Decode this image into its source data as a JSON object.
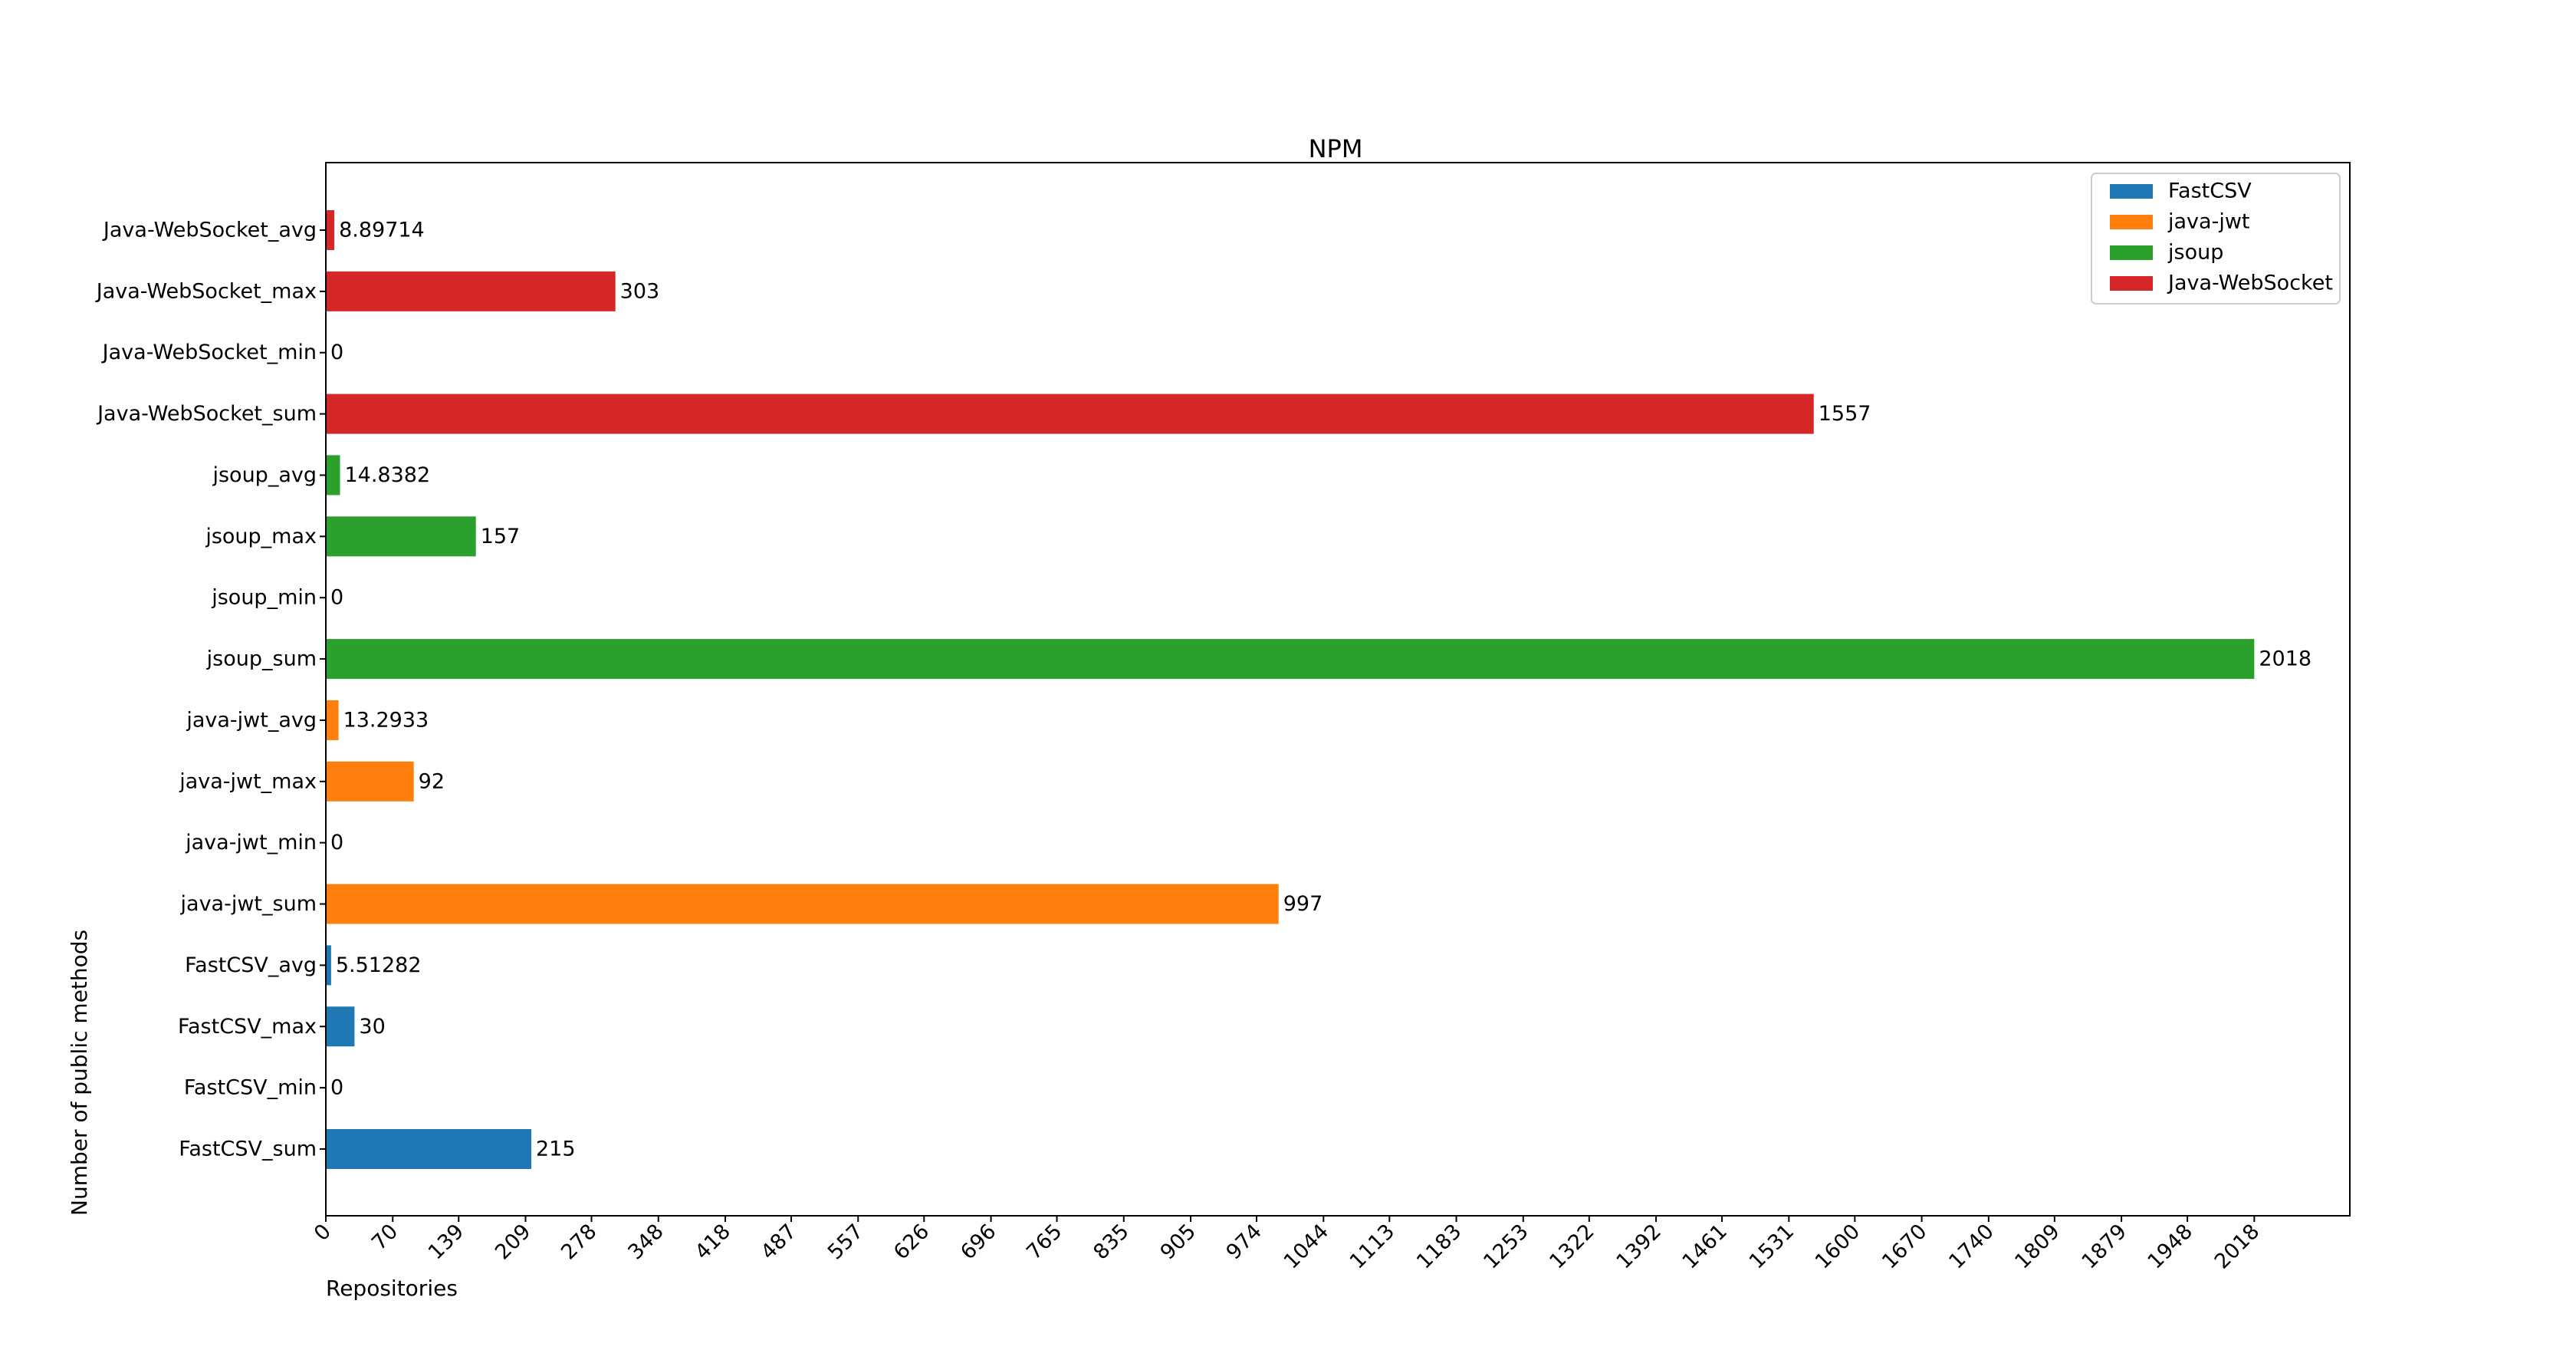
{
  "chart_data": {
    "type": "bar",
    "orientation": "horizontal",
    "title": "NPM",
    "xlabel": "Repositories",
    "ylabel": "Number of public methods",
    "xlim": [
      0,
      2118
    ],
    "grid": false,
    "legend_position": "top-right",
    "xticks": [
      "0",
      "70",
      "139",
      "209",
      "278",
      "348",
      "418",
      "487",
      "557",
      "626",
      "696",
      "765",
      "835",
      "905",
      "974",
      "1044",
      "1113",
      "1183",
      "1253",
      "1322",
      "1392",
      "1461",
      "1531",
      "1600",
      "1670",
      "1740",
      "1809",
      "1879",
      "1948",
      "2018"
    ],
    "xtick_values": [
      0,
      70,
      139,
      209,
      278,
      348,
      418,
      487,
      557,
      626,
      696,
      765,
      835,
      905,
      974,
      1044,
      1113,
      1183,
      1253,
      1322,
      1392,
      1461,
      1531,
      1600,
      1670,
      1740,
      1809,
      1879,
      1948,
      2018
    ],
    "legend": [
      {
        "name": "FastCSV",
        "color": "#1f77b4"
      },
      {
        "name": "java-jwt",
        "color": "#ff7f0e"
      },
      {
        "name": "jsoup",
        "color": "#2ca02c"
      },
      {
        "name": "Java-WebSocket",
        "color": "#d62728"
      }
    ],
    "bars": [
      {
        "category": "FastCSV_sum",
        "value": 215,
        "label": "215",
        "series": "FastCSV",
        "color": "#1f77b4"
      },
      {
        "category": "FastCSV_min",
        "value": 0,
        "label": "0",
        "series": "FastCSV",
        "color": "#1f77b4"
      },
      {
        "category": "FastCSV_max",
        "value": 30,
        "label": "30",
        "series": "FastCSV",
        "color": "#1f77b4"
      },
      {
        "category": "FastCSV_avg",
        "value": 5.51282,
        "label": "5.51282",
        "series": "FastCSV",
        "color": "#1f77b4"
      },
      {
        "category": "java-jwt_sum",
        "value": 997,
        "label": "997",
        "series": "java-jwt",
        "color": "#ff7f0e"
      },
      {
        "category": "java-jwt_min",
        "value": 0,
        "label": "0",
        "series": "java-jwt",
        "color": "#ff7f0e"
      },
      {
        "category": "java-jwt_max",
        "value": 92,
        "label": "92",
        "series": "java-jwt",
        "color": "#ff7f0e"
      },
      {
        "category": "java-jwt_avg",
        "value": 13.2933,
        "label": "13.2933",
        "series": "java-jwt",
        "color": "#ff7f0e"
      },
      {
        "category": "jsoup_sum",
        "value": 2018,
        "label": "2018",
        "series": "jsoup",
        "color": "#2ca02c"
      },
      {
        "category": "jsoup_min",
        "value": 0,
        "label": "0",
        "series": "jsoup",
        "color": "#2ca02c"
      },
      {
        "category": "jsoup_max",
        "value": 157,
        "label": "157",
        "series": "jsoup",
        "color": "#2ca02c"
      },
      {
        "category": "jsoup_avg",
        "value": 14.8382,
        "label": "14.8382",
        "series": "jsoup",
        "color": "#2ca02c"
      },
      {
        "category": "Java-WebSocket_sum",
        "value": 1557,
        "label": "1557",
        "series": "Java-WebSocket",
        "color": "#d62728"
      },
      {
        "category": "Java-WebSocket_min",
        "value": 0,
        "label": "0",
        "series": "Java-WebSocket",
        "color": "#d62728"
      },
      {
        "category": "Java-WebSocket_max",
        "value": 303,
        "label": "303",
        "series": "Java-WebSocket",
        "color": "#d62728"
      },
      {
        "category": "Java-WebSocket_avg",
        "value": 8.89714,
        "label": "8.89714",
        "series": "Java-WebSocket",
        "color": "#d62728"
      }
    ]
  }
}
